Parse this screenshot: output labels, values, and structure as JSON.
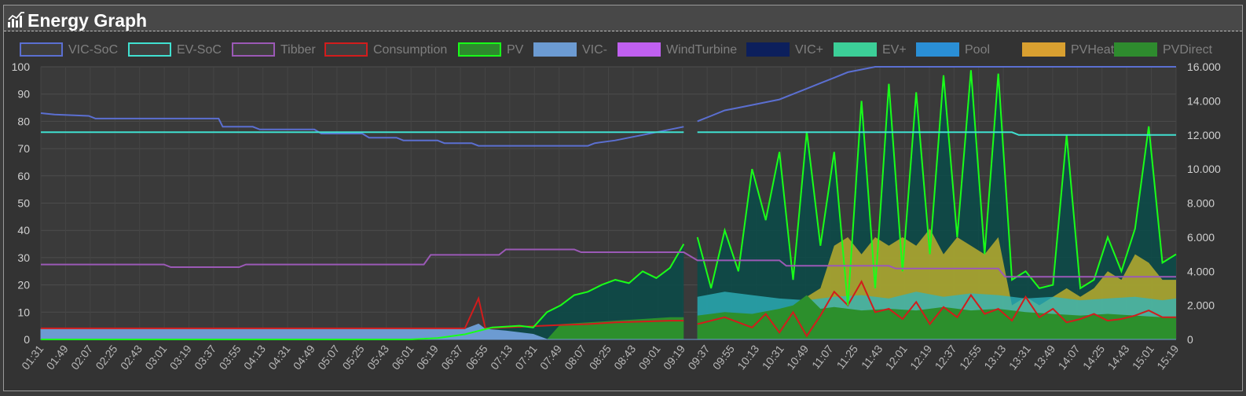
{
  "panel": {
    "title": "Energy Graph",
    "icon": "chart-icon"
  },
  "chart_data": {
    "type": "area",
    "legend_position": "top",
    "grid": true,
    "left_axis": {
      "ylim": [
        0,
        100
      ],
      "ticks": [
        "0",
        "10",
        "20",
        "30",
        "40",
        "50",
        "60",
        "70",
        "80",
        "90",
        "100"
      ]
    },
    "right_axis": {
      "ylim": [
        0,
        16000
      ],
      "ticks": [
        "0",
        "2.000",
        "4.000",
        "6.000",
        "8.000",
        "10.000",
        "12.000",
        "14.000",
        "16.000"
      ]
    },
    "x_ticks": [
      "01:31",
      "01:49",
      "02:07",
      "02:25",
      "02:43",
      "03:01",
      "03:19",
      "03:37",
      "03:55",
      "04:13",
      "04:31",
      "04:49",
      "05:07",
      "05:25",
      "05:43",
      "06:01",
      "06:19",
      "06:37",
      "06:55",
      "07:13",
      "07:31",
      "07:49",
      "08:07",
      "08:25",
      "08:43",
      "09:01",
      "09:19",
      "09:37",
      "09:55",
      "10:13",
      "10:31",
      "10:49",
      "11:07",
      "11:25",
      "11:43",
      "12:01",
      "12:19",
      "12:37",
      "12:55",
      "13:13",
      "13:31",
      "13:49",
      "14:07",
      "14:25",
      "14:43",
      "15:01",
      "15:19"
    ],
    "legend": [
      {
        "name": "VIC-SoC",
        "color": "#5b6fd1",
        "fill": "#3f3f3f"
      },
      {
        "name": "EV-SoC",
        "color": "#40e0d0",
        "fill": "#3f3f3f"
      },
      {
        "name": "Tibber",
        "color": "#9b59b6",
        "fill": "#3f3f3f"
      },
      {
        "name": "Consumption",
        "color": "#d21c1c",
        "fill": "#3f3f3f"
      },
      {
        "name": "PV",
        "color": "#19ff19",
        "fill": "#2d8a2d"
      },
      {
        "name": "VIC-",
        "color": "#6c9bd2",
        "fill": "#6c9bd2"
      },
      {
        "name": "WindTurbine",
        "color": "#c060f0",
        "fill": "#c060f0"
      },
      {
        "name": "VIC+",
        "color": "#0c1f5c",
        "fill": "#0c1f5c"
      },
      {
        "name": "EV+",
        "color": "#3ccf98",
        "fill": "#3ccf98"
      },
      {
        "name": "Pool",
        "color": "#2a8fd6",
        "fill": "#2a8fd6"
      },
      {
        "name": "PVHeater",
        "color": "#d9a030",
        "fill": "#d9a030"
      },
      {
        "name": "PVDirect",
        "color": "#2e8b2e",
        "fill": "#2e8b2e"
      }
    ],
    "series": [
      {
        "name": "VIC-SoC",
        "axis": "left",
        "points": [
          [
            0,
            83
          ],
          [
            1,
            82.5
          ],
          [
            3.5,
            82
          ],
          [
            4,
            81
          ],
          [
            13,
            81
          ],
          [
            13.3,
            78
          ],
          [
            15.5,
            78
          ],
          [
            16,
            77
          ],
          [
            20,
            77
          ],
          [
            20.5,
            75.5
          ],
          [
            23.5,
            75.5
          ],
          [
            24,
            74
          ],
          [
            26,
            74
          ],
          [
            26.5,
            73
          ],
          [
            29,
            73
          ],
          [
            29.5,
            72
          ],
          [
            31.5,
            72
          ],
          [
            32,
            71
          ],
          [
            40,
            71
          ],
          [
            40.5,
            72
          ],
          [
            42,
            73
          ],
          [
            43,
            74
          ],
          [
            44,
            75
          ],
          [
            45,
            76
          ],
          [
            46,
            77
          ],
          [
            47,
            78
          ],
          null,
          [
            48,
            80
          ],
          [
            49,
            82
          ],
          [
            50,
            84
          ],
          [
            51,
            85
          ],
          [
            52,
            86
          ],
          [
            53,
            87
          ],
          [
            54,
            88
          ],
          [
            55,
            90
          ],
          [
            56,
            92
          ],
          [
            57,
            94
          ],
          [
            58,
            96
          ],
          [
            59,
            98
          ],
          [
            60,
            99
          ],
          [
            61,
            100
          ],
          [
            83,
            100
          ]
        ]
      },
      {
        "name": "EV-SoC",
        "axis": "left",
        "points": [
          [
            0,
            76
          ],
          [
            47,
            76
          ],
          null,
          [
            48,
            76
          ],
          [
            71,
            76
          ],
          [
            71.5,
            75
          ],
          [
            83,
            75
          ]
        ]
      },
      {
        "name": "Tibber",
        "axis": "left",
        "points": [
          [
            0,
            27.5
          ],
          [
            9,
            27.5
          ],
          [
            9.5,
            26.5
          ],
          [
            14.5,
            26.5
          ],
          [
            15,
            27.5
          ],
          [
            28,
            27.5
          ],
          [
            28.5,
            31
          ],
          [
            33.5,
            31
          ],
          [
            34,
            33
          ],
          [
            39,
            33
          ],
          [
            39.5,
            32
          ],
          [
            47,
            32
          ],
          [
            48,
            29
          ],
          [
            54,
            29
          ],
          [
            54.5,
            27
          ],
          [
            62,
            27
          ],
          [
            62.5,
            26
          ],
          [
            70,
            26
          ],
          [
            70.5,
            23
          ],
          [
            83,
            23
          ]
        ]
      },
      {
        "name": "Consumption",
        "axis": "right",
        "points": [
          [
            0,
            650
          ],
          [
            31,
            650
          ],
          [
            32,
            2400
          ],
          [
            32.5,
            650
          ],
          [
            34,
            700
          ],
          [
            36,
            780
          ],
          [
            38,
            850
          ],
          [
            40,
            900
          ],
          [
            42,
            1000
          ],
          [
            44,
            1050
          ],
          [
            46,
            1100
          ],
          [
            47,
            1100
          ],
          null,
          [
            48,
            900
          ],
          [
            50,
            1300
          ],
          [
            52,
            700
          ],
          [
            53,
            1500
          ],
          [
            54,
            400
          ],
          [
            55,
            1600
          ],
          [
            56,
            200
          ],
          [
            57,
            1400
          ],
          [
            58,
            2800
          ],
          [
            59,
            2000
          ],
          [
            60,
            3400
          ],
          [
            61,
            1600
          ],
          [
            62,
            1800
          ],
          [
            63,
            1200
          ],
          [
            64,
            2200
          ],
          [
            65,
            900
          ],
          [
            66,
            1900
          ],
          [
            67,
            1300
          ],
          [
            68,
            2600
          ],
          [
            69,
            1500
          ],
          [
            70,
            1800
          ],
          [
            71,
            1100
          ],
          [
            72,
            2500
          ],
          [
            73,
            1300
          ],
          [
            74,
            1800
          ],
          [
            75,
            1000
          ],
          [
            76,
            1200
          ],
          [
            77,
            1500
          ],
          [
            78,
            1100
          ],
          [
            79,
            1200
          ],
          [
            80,
            1400
          ],
          [
            81,
            1700
          ],
          [
            82,
            1300
          ],
          [
            83,
            1300
          ]
        ]
      },
      {
        "name": "PV",
        "axis": "right",
        "points": [
          [
            0,
            0
          ],
          [
            27,
            0
          ],
          [
            29,
            80
          ],
          [
            31,
            300
          ],
          [
            33,
            700
          ],
          [
            35,
            800
          ],
          [
            36,
            700
          ],
          [
            37,
            1600
          ],
          [
            38,
            2000
          ],
          [
            39,
            2600
          ],
          [
            40,
            2800
          ],
          [
            41,
            3200
          ],
          [
            42,
            3500
          ],
          [
            43,
            3300
          ],
          [
            44,
            4000
          ],
          [
            45,
            3600
          ],
          [
            46,
            4200
          ],
          [
            47,
            5600
          ],
          null,
          [
            48,
            6000
          ],
          [
            49,
            3000
          ],
          [
            50,
            6400
          ],
          [
            51,
            4000
          ],
          [
            52,
            10000
          ],
          [
            53,
            7000
          ],
          [
            54,
            11000
          ],
          [
            55,
            3500
          ],
          [
            56,
            12200
          ],
          [
            57,
            5500
          ],
          [
            58,
            11000
          ],
          [
            59,
            2000
          ],
          [
            60,
            14000
          ],
          [
            61,
            3000
          ],
          [
            62,
            15000
          ],
          [
            63,
            4000
          ],
          [
            64,
            14500
          ],
          [
            65,
            5000
          ],
          [
            66,
            15500
          ],
          [
            67,
            6000
          ],
          [
            68,
            15800
          ],
          [
            69,
            5000
          ],
          [
            70,
            15600
          ],
          [
            71,
            3500
          ],
          [
            72,
            4000
          ],
          [
            73,
            3000
          ],
          [
            74,
            3200
          ],
          [
            75,
            12000
          ],
          [
            76,
            3000
          ],
          [
            77,
            3500
          ],
          [
            78,
            6000
          ],
          [
            79,
            4000
          ],
          [
            80,
            6500
          ],
          [
            81,
            12500
          ],
          [
            82,
            4500
          ],
          [
            83,
            5000
          ]
        ]
      },
      {
        "name": "VIC-",
        "axis": "right",
        "points": [
          [
            0,
            600
          ],
          [
            31,
            600
          ],
          [
            32,
            900
          ],
          [
            32.5,
            600
          ],
          [
            34,
            500
          ],
          [
            36,
            300
          ],
          [
            37,
            0
          ],
          [
            83,
            0
          ]
        ]
      },
      {
        "name": "PVHeater",
        "axis": "right",
        "points": [
          [
            48,
            0
          ],
          [
            55,
            0
          ],
          [
            56,
            2500
          ],
          [
            57,
            3000
          ],
          [
            58,
            5500
          ],
          [
            59,
            6000
          ],
          [
            60,
            5000
          ],
          [
            61,
            6000
          ],
          [
            62,
            5500
          ],
          [
            63,
            6000
          ],
          [
            64,
            5500
          ],
          [
            65,
            6500
          ],
          [
            66,
            5000
          ],
          [
            67,
            6000
          ],
          [
            68,
            5500
          ],
          [
            69,
            5000
          ],
          [
            70,
            6000
          ],
          [
            71,
            2000
          ],
          [
            72,
            2500
          ],
          [
            73,
            2000
          ],
          [
            74,
            2500
          ],
          [
            75,
            3000
          ],
          [
            76,
            2500
          ],
          [
            77,
            3000
          ],
          [
            78,
            4000
          ],
          [
            79,
            3500
          ],
          [
            80,
            5000
          ],
          [
            81,
            4500
          ],
          [
            82,
            3500
          ],
          [
            83,
            3500
          ]
        ]
      },
      {
        "name": "Pool",
        "axis": "right",
        "points": [
          [
            48,
            2500
          ],
          [
            50,
            2800
          ],
          [
            52,
            2600
          ],
          [
            54,
            2400
          ],
          [
            56,
            2300
          ],
          [
            58,
            2500
          ],
          [
            60,
            2600
          ],
          [
            62,
            2400
          ],
          [
            64,
            2800
          ],
          [
            66,
            2500
          ],
          [
            68,
            2700
          ],
          [
            70,
            2600
          ],
          [
            72,
            2400
          ],
          [
            74,
            2500
          ],
          [
            76,
            2300
          ],
          [
            78,
            2400
          ],
          [
            80,
            2500
          ],
          [
            82,
            2300
          ],
          [
            83,
            2400
          ]
        ]
      },
      {
        "name": "PVDirect",
        "axis": "right",
        "points": [
          [
            37,
            0
          ],
          [
            38,
            900
          ],
          [
            40,
            1000
          ],
          [
            42,
            1100
          ],
          [
            44,
            1200
          ],
          [
            46,
            1300
          ],
          [
            47,
            1300
          ],
          null,
          [
            48,
            1400
          ],
          [
            50,
            1600
          ],
          [
            52,
            1500
          ],
          [
            54,
            1800
          ],
          [
            55,
            2000
          ],
          [
            56,
            2600
          ],
          [
            57,
            1800
          ],
          [
            58,
            1900
          ],
          [
            60,
            1700
          ],
          [
            62,
            1800
          ],
          [
            64,
            1700
          ],
          [
            66,
            1900
          ],
          [
            68,
            1700
          ],
          [
            70,
            1800
          ],
          [
            72,
            1600
          ],
          [
            74,
            1500
          ],
          [
            76,
            1400
          ],
          [
            78,
            1500
          ],
          [
            80,
            1400
          ],
          [
            82,
            1300
          ],
          [
            83,
            1300
          ]
        ]
      }
    ]
  }
}
